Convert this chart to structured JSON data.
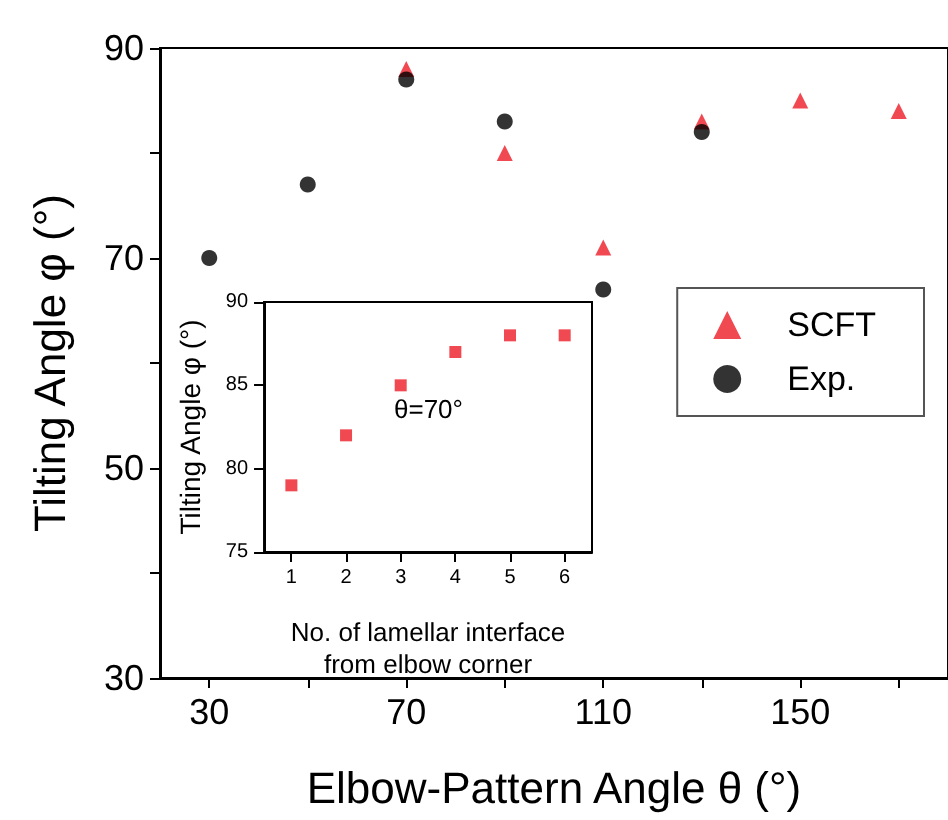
{
  "chart_data": [
    {
      "type": "scatter",
      "xlabel": "Elbow-Pattern Angle θ (°)",
      "ylabel": "Tilting Angle φ (°)",
      "x": [
        30,
        50,
        70,
        90,
        110,
        130,
        150,
        170
      ],
      "series": [
        {
          "name": "SCFT",
          "color": "#ee1c25",
          "marker": "triangle",
          "values": [
            null,
            null,
            88,
            80,
            71,
            83,
            85,
            84
          ]
        },
        {
          "name": "Exp.",
          "color": "#000000",
          "marker": "circle",
          "values": [
            70,
            77,
            87,
            83,
            67,
            82,
            null,
            null
          ]
        }
      ],
      "xlim": [
        20,
        180
      ],
      "xticks": [
        30,
        {
          "value": 50,
          "label": null
        },
        70,
        {
          "value": 90,
          "label": null
        },
        110,
        {
          "value": 130,
          "label": null
        },
        150,
        {
          "value": 170,
          "label": null
        }
      ],
      "ylim": [
        30,
        90
      ],
      "yticks": [
        30,
        {
          "value": 40,
          "label": null
        },
        50,
        {
          "value": 60,
          "label": null
        },
        70,
        {
          "value": 80,
          "label": null
        },
        90
      ],
      "grid": false,
      "legend": "right"
    },
    {
      "type": "scatter",
      "xlabel": "No. of lamellar interface from elbow corner",
      "ylabel": "Tilting Angle φ (°)",
      "x": [
        1,
        2,
        3,
        4,
        5,
        6
      ],
      "series": [
        {
          "color": "#ee1c25",
          "marker": "square",
          "values": [
            79,
            82,
            85,
            87,
            88,
            88
          ]
        }
      ],
      "xlim": [
        0.5,
        6.5
      ],
      "xticks": [
        1,
        2,
        3,
        4,
        5,
        6
      ],
      "ylim": [
        75,
        90
      ],
      "yticks": [
        75,
        80,
        85,
        90
      ],
      "annotations": [
        "θ=70°"
      ],
      "grid": false,
      "legend": false
    }
  ]
}
